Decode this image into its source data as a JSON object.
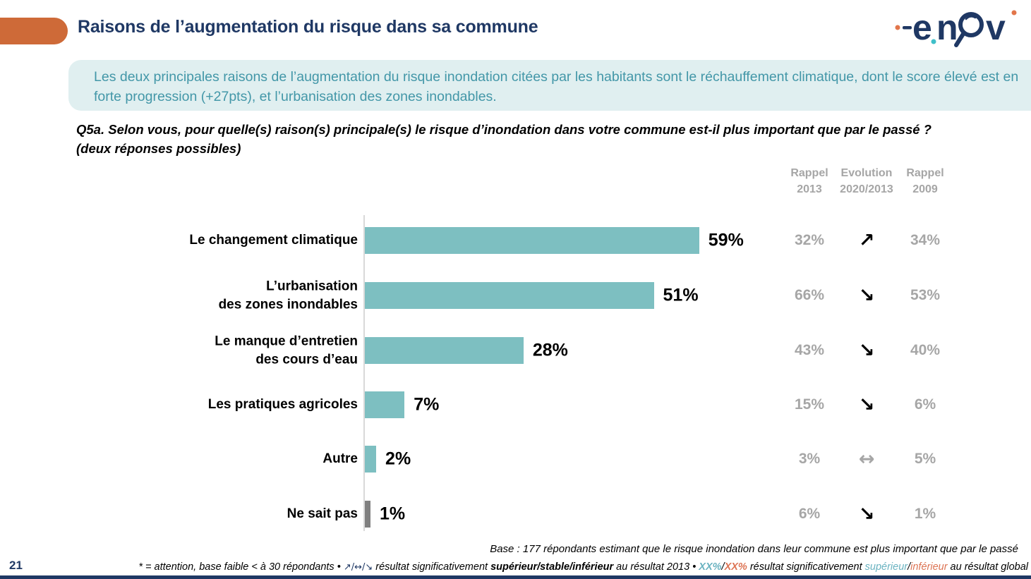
{
  "page": {
    "title": "Raisons de l’augmentation du risque dans sa commune",
    "page_number": "21"
  },
  "logo": {
    "name": "enov-logo",
    "letters_e": "e",
    "letters_n": "n",
    "letters_v": "v"
  },
  "summary": {
    "text": "Les deux principales raisons de l’augmentation du risque inondation citées par les habitants sont le réchauffement climatique, dont le score élevé est en forte progression (+27pts), et l’urbanisation des zones inondables."
  },
  "question": {
    "line1": "Q5a. Selon vous, pour quelle(s) raison(s) principale(s) le risque d’inondation dans votre commune est-il plus important que par le passé ?",
    "line2": "(deux réponses possibles)"
  },
  "column_headers": {
    "rappel_2013": "Rappel\n2013",
    "evolution": "Evolution\n2020/2013",
    "rappel_2009": "Rappel\n2009"
  },
  "chart_data": {
    "type": "bar",
    "orientation": "horizontal",
    "categories": [
      "Le changement climatique",
      "L’urbanisation\ndes zones inondables",
      "Le manque d’entretien\ndes cours d’eau",
      "Les pratiques agricoles",
      "Autre",
      "Ne sait pas"
    ],
    "values": [
      59,
      51,
      28,
      7,
      2,
      1
    ],
    "value_labels": [
      "59%",
      "51%",
      "28%",
      "7%",
      "2%",
      "1%"
    ],
    "bar_colors": [
      "#7DBFC1",
      "#7DBFC1",
      "#7DBFC1",
      "#7DBFC1",
      "#7DBFC1",
      "#808080"
    ],
    "rappel_2013": [
      "32%",
      "66%",
      "43%",
      "15%",
      "3%",
      "6%"
    ],
    "evolution": [
      {
        "glyph": "↗",
        "direction": "up",
        "color": "#000000"
      },
      {
        "glyph": "↘",
        "direction": "down",
        "color": "#000000"
      },
      {
        "glyph": "↘",
        "direction": "down",
        "color": "#000000"
      },
      {
        "glyph": "↘",
        "direction": "down",
        "color": "#000000"
      },
      {
        "glyph": "↔",
        "direction": "stable",
        "color": "#A6A6A6"
      },
      {
        "glyph": "↘",
        "direction": "down",
        "color": "#000000"
      }
    ],
    "rappel_2009": [
      "34%",
      "53%",
      "40%",
      "6%",
      "5%",
      "1%"
    ],
    "xlim": [
      0,
      62
    ],
    "grid": false,
    "legend": false
  },
  "footer": {
    "base": "Base : 177 répondants estimant que le risque inondation dans leur commune est plus important que par le passé",
    "note_parts": [
      {
        "text": "* = attention, base faible < à 30 répondants • "
      },
      {
        "text": "↗/↔/↘"
      },
      {
        "text": " résultat significativement "
      },
      {
        "text": "supérieur/stable/inférieur"
      },
      {
        "text": " au résultat 2013 • "
      },
      {
        "text": "XX%"
      },
      {
        "text": "/"
      },
      {
        "text": "XX%"
      },
      {
        "text": " résultat significativement "
      },
      {
        "text": "supérieur"
      },
      {
        "text": "/"
      },
      {
        "text": "inférieur"
      },
      {
        "text": " au résultat global"
      }
    ]
  },
  "colors": {
    "accent_orange": "#CE6A38",
    "navy": "#1F3864",
    "teal_bar": "#7DBFC1",
    "teal_text": "#4397A8",
    "light_teal_bg": "#E0EFF0",
    "gray_text": "#A6A6A6",
    "gray_bar": "#808080",
    "axis_gray": "#D9D9D9",
    "footnote_teal": "#6AB3C1",
    "footnote_orange": "#DD7454"
  }
}
